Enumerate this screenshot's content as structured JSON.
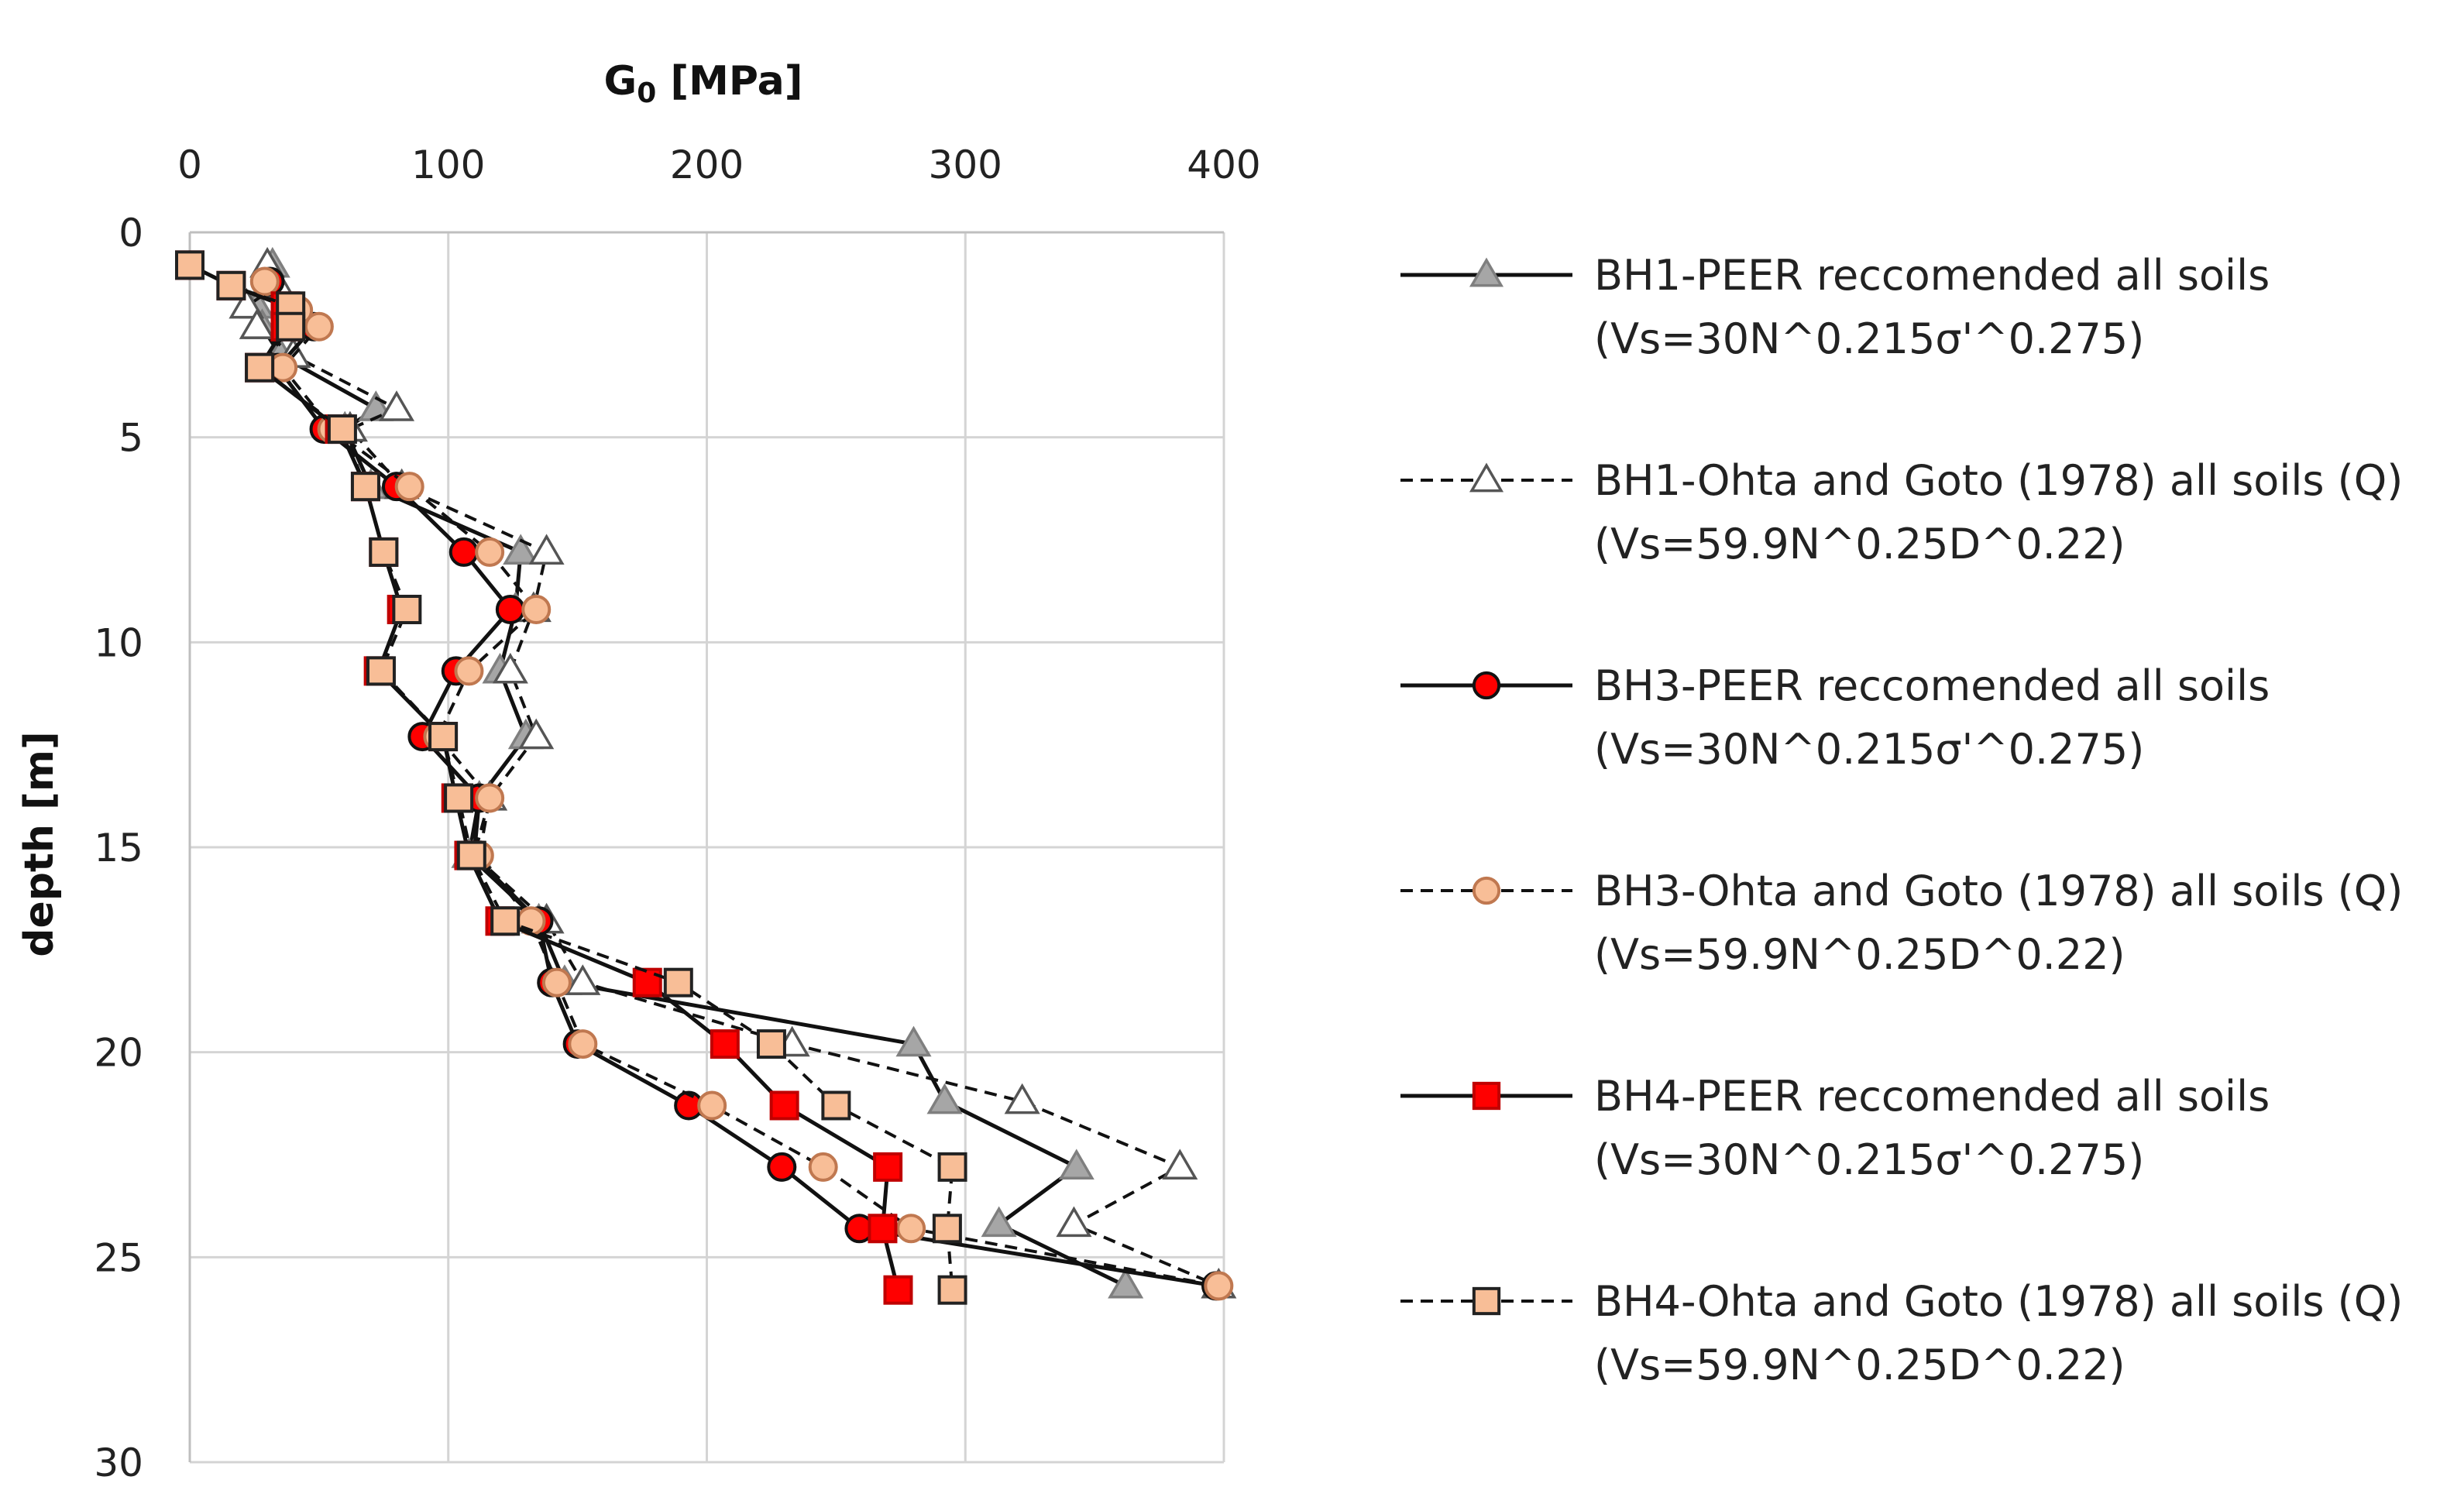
{
  "chart_data": {
    "type": "scatter",
    "x_title_main": "G",
    "x_title_sub": "0",
    "x_title_unit": "[MPa]",
    "ylabel": "depth [m]",
    "xlim": [
      0,
      400
    ],
    "ylim": [
      0,
      30
    ],
    "x_ticks": [
      0,
      100,
      200,
      300,
      400
    ],
    "y_ticks": [
      0,
      5,
      10,
      15,
      20,
      25,
      30
    ],
    "gridlines": true,
    "y_inverted": true,
    "x_axis_position": "top",
    "legend_position": "right",
    "series": [
      {
        "name": "BH1-PEER reccomended all soils",
        "formula": "(Vs=30N^0.215σ'^0.275)",
        "line_style": "solid",
        "marker": "triangle",
        "marker_fill": "#a6a6a6",
        "marker_stroke": "#7f7f7f",
        "points": [
          [
            32,
            0.8
          ],
          [
            30,
            1.3
          ],
          [
            26,
            1.8
          ],
          [
            28,
            2.3
          ],
          [
            35,
            3.0
          ],
          [
            72,
            4.3
          ],
          [
            60,
            4.8
          ],
          [
            70,
            6.2
          ],
          [
            128,
            7.8
          ],
          [
            126,
            9.2
          ],
          [
            120,
            10.7
          ],
          [
            130,
            12.3
          ],
          [
            112,
            13.8
          ],
          [
            108,
            15.2
          ],
          [
            135,
            16.8
          ],
          [
            145,
            18.3
          ],
          [
            280,
            19.8
          ],
          [
            292,
            21.2
          ],
          [
            343,
            22.8
          ],
          [
            313,
            24.2
          ],
          [
            362,
            25.7
          ]
        ]
      },
      {
        "name": "BH1-Ohta and Goto (1978)  all soils (Q)",
        "formula": "(Vs=59.9N^0.25D^0.22)",
        "line_style": "dashed",
        "marker": "triangle",
        "marker_fill": "#ffffff",
        "marker_stroke": "#555555",
        "points": [
          [
            30,
            0.8
          ],
          [
            34,
            1.3
          ],
          [
            22,
            1.8
          ],
          [
            26,
            2.3
          ],
          [
            40,
            3.0
          ],
          [
            80,
            4.3
          ],
          [
            62,
            4.8
          ],
          [
            82,
            6.2
          ],
          [
            138,
            7.8
          ],
          [
            133,
            9.2
          ],
          [
            124,
            10.7
          ],
          [
            134,
            12.3
          ],
          [
            116,
            13.8
          ],
          [
            110,
            15.2
          ],
          [
            138,
            16.8
          ],
          [
            152,
            18.3
          ],
          [
            233,
            19.8
          ],
          [
            322,
            21.2
          ],
          [
            383,
            22.8
          ],
          [
            342,
            24.2
          ],
          [
            398,
            25.7
          ]
        ]
      },
      {
        "name": "BH3-PEER reccomended all soils",
        "formula": "(Vs=30N^0.215σ'^0.275)",
        "line_style": "solid",
        "marker": "circle",
        "marker_fill": "#ff0000",
        "marker_stroke": "#111111",
        "points": [
          [
            31,
            1.2
          ],
          [
            40,
            1.9
          ],
          [
            48,
            2.3
          ],
          [
            34,
            3.3
          ],
          [
            52,
            4.8
          ],
          [
            80,
            6.2
          ],
          [
            106,
            7.8
          ],
          [
            124,
            9.2
          ],
          [
            103,
            10.7
          ],
          [
            90,
            12.3
          ],
          [
            112,
            13.8
          ],
          [
            110,
            15.2
          ],
          [
            135,
            16.8
          ],
          [
            140,
            18.3
          ],
          [
            150,
            19.8
          ],
          [
            193,
            21.3
          ],
          [
            229,
            22.8
          ],
          [
            259,
            24.3
          ],
          [
            397,
            25.7
          ]
        ]
      },
      {
        "name": "BH3-Ohta and Goto (1978)  all soils (Q)",
        "formula": "(Vs=59.9N^0.25D^0.22)",
        "line_style": "dashed",
        "marker": "circle",
        "marker_fill": "#f8be97",
        "marker_stroke": "#c07850",
        "points": [
          [
            29,
            1.2
          ],
          [
            42,
            1.9
          ],
          [
            50,
            2.3
          ],
          [
            36,
            3.3
          ],
          [
            55,
            4.8
          ],
          [
            85,
            6.2
          ],
          [
            116,
            7.8
          ],
          [
            134,
            9.2
          ],
          [
            108,
            10.7
          ],
          [
            96,
            12.3
          ],
          [
            116,
            13.8
          ],
          [
            112,
            15.2
          ],
          [
            132,
            16.8
          ],
          [
            142,
            18.3
          ],
          [
            152,
            19.8
          ],
          [
            202,
            21.3
          ],
          [
            245,
            22.8
          ],
          [
            279,
            24.3
          ],
          [
            398,
            25.7
          ]
        ]
      },
      {
        "name": "BH4-PEER reccomended all soils",
        "formula": "(Vs=30N^0.215σ'^0.275)",
        "line_style": "solid",
        "marker": "square",
        "marker_fill": "#ff0000",
        "marker_stroke": "#c00000",
        "points": [
          [
            0,
            0.8
          ],
          [
            16,
            1.3
          ],
          [
            37,
            1.8
          ],
          [
            37,
            2.3
          ],
          [
            27,
            3.3
          ],
          [
            58,
            4.8
          ],
          [
            68,
            6.2
          ],
          [
            75,
            7.8
          ],
          [
            82,
            9.2
          ],
          [
            73,
            10.7
          ],
          [
            98,
            12.3
          ],
          [
            103,
            13.8
          ],
          [
            108,
            15.2
          ],
          [
            120,
            16.8
          ],
          [
            177,
            18.3
          ],
          [
            207,
            19.8
          ],
          [
            230,
            21.3
          ],
          [
            270,
            22.8
          ],
          [
            268,
            24.3
          ],
          [
            274,
            25.8
          ]
        ]
      },
      {
        "name": "BH4-Ohta and Goto (1978)  all soils (Q)",
        "formula": "(Vs=59.9N^0.25D^0.22)",
        "line_style": "dashed",
        "marker": "square",
        "marker_fill": "#f8be97",
        "marker_stroke": "#222222",
        "points": [
          [
            0,
            0.8
          ],
          [
            16,
            1.3
          ],
          [
            39,
            1.8
          ],
          [
            39,
            2.3
          ],
          [
            27,
            3.3
          ],
          [
            59,
            4.8
          ],
          [
            68,
            6.2
          ],
          [
            75,
            7.8
          ],
          [
            84,
            9.2
          ],
          [
            74,
            10.7
          ],
          [
            98,
            12.3
          ],
          [
            104,
            13.8
          ],
          [
            109,
            15.2
          ],
          [
            122,
            16.8
          ],
          [
            189,
            18.3
          ],
          [
            225,
            19.8
          ],
          [
            250,
            21.3
          ],
          [
            295,
            22.8
          ],
          [
            293,
            24.3
          ],
          [
            295,
            25.8
          ]
        ]
      }
    ]
  }
}
